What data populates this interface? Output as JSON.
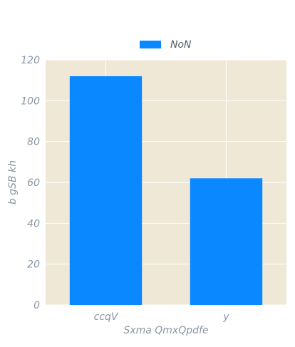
{
  "chart_data": {
    "type": "bar",
    "categories": [
      "ccqV",
      "y"
    ],
    "series": [
      {
        "name": "NoN",
        "values": [
          112,
          62
        ]
      }
    ],
    "xlabel": "Sxma QmxQpdfe",
    "ylabel": "b  gSB kh",
    "ylim": [
      0,
      120
    ],
    "yticks": [
      0,
      20,
      40,
      60,
      80,
      100,
      120
    ],
    "grid": true,
    "legend": "top-center",
    "colors": {
      "bar": "#0a88ff",
      "plot_bg": "#efe8d6",
      "grid": "#ffffff",
      "text": "#8a96a3"
    }
  }
}
